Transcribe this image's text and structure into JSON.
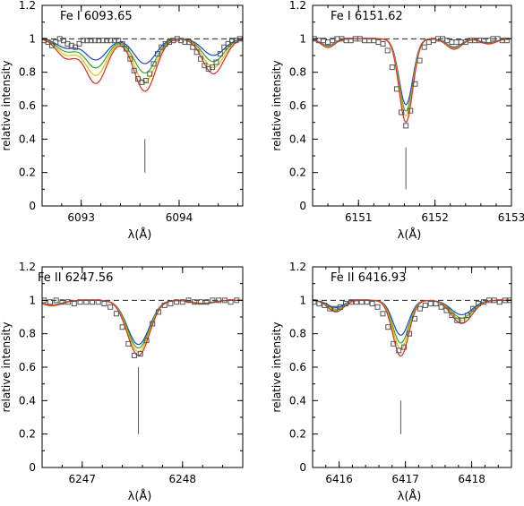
{
  "figure": {
    "colors": {
      "observed": "#555555",
      "model_blue": "#1f3fd8",
      "model_green": "#2fa830",
      "model_yellow": "#d8c800",
      "model_red": "#e8281e",
      "continuum": "#222222",
      "marker": "#555555"
    }
  },
  "chart_data": [
    {
      "type": "line",
      "title": "Fe I 6093.65",
      "xlabel": "λ(Å)",
      "ylabel": "relative intensity",
      "xlim": [
        6092.6,
        6094.65
      ],
      "ylim": [
        0,
        1.2
      ],
      "xticks": [
        6093,
        6094
      ],
      "yticks": [
        0,
        0.2,
        0.4,
        0.6,
        0.8,
        1,
        1.2
      ],
      "continuum": 1.0,
      "line_marker": {
        "x": 6093.65,
        "y": [
          0.2,
          0.4
        ]
      },
      "lines": [
        {
          "center": 6092.85,
          "depth": 0.12,
          "sigma": 0.1
        },
        {
          "center": 6093.15,
          "depth": 0.28,
          "sigma": 0.11
        },
        {
          "center": 6093.65,
          "depth": 0.33,
          "sigma": 0.11
        },
        {
          "center": 6094.35,
          "depth": 0.22,
          "sigma": 0.11
        }
      ],
      "observed": {
        "x": [
          6092.62,
          6092.66,
          6092.7,
          6092.74,
          6092.78,
          6092.82,
          6092.86,
          6092.9,
          6092.94,
          6092.98,
          6093.02,
          6093.06,
          6093.1,
          6093.14,
          6093.18,
          6093.22,
          6093.26,
          6093.3,
          6093.34,
          6093.38,
          6093.42,
          6093.46,
          6093.5,
          6093.54,
          6093.58,
          6093.62,
          6093.66,
          6093.7,
          6093.74,
          6093.78,
          6093.82,
          6093.86,
          6093.9,
          6093.94,
          6093.98,
          6094.02,
          6094.06,
          6094.1,
          6094.14,
          6094.18,
          6094.22,
          6094.26,
          6094.3,
          6094.34,
          6094.38,
          6094.42,
          6094.46,
          6094.5,
          6094.54,
          6094.58,
          6094.62
        ],
        "y": [
          0.99,
          0.98,
          0.96,
          0.98,
          1.0,
          0.99,
          0.97,
          0.96,
          0.95,
          0.97,
          0.99,
          0.99,
          0.99,
          0.99,
          0.99,
          0.99,
          0.99,
          0.99,
          0.99,
          0.99,
          0.97,
          0.94,
          0.88,
          0.81,
          0.76,
          0.74,
          0.75,
          0.79,
          0.85,
          0.91,
          0.95,
          0.97,
          0.98,
          0.99,
          1.0,
          0.99,
          0.98,
          0.98,
          0.95,
          0.92,
          0.88,
          0.84,
          0.82,
          0.83,
          0.86,
          0.91,
          0.95,
          0.97,
          0.99,
          0.99,
          1.0
        ]
      },
      "series": [
        {
          "color_key": "model_blue",
          "scale": 0.45
        },
        {
          "color_key": "model_green",
          "scale": 0.62
        },
        {
          "color_key": "model_yellow",
          "scale": 0.78
        },
        {
          "color_key": "model_red",
          "scale": 0.95
        }
      ]
    },
    {
      "type": "line",
      "title": "Fe I 6151.62",
      "xlabel": "λ(Å)",
      "ylabel": "relative intensity",
      "xlim": [
        6150.4,
        6153.0
      ],
      "ylim": [
        0,
        1.2
      ],
      "xticks": [
        6151,
        6152,
        6153
      ],
      "yticks": [
        0,
        0.2,
        0.4,
        0.6,
        0.8,
        1,
        1.2
      ],
      "continuum": 1.0,
      "line_marker": {
        "x": 6151.62,
        "y": [
          0.1,
          0.35
        ]
      },
      "lines": [
        {
          "center": 6150.6,
          "depth": 0.05,
          "sigma": 0.09
        },
        {
          "center": 6151.62,
          "depth": 0.48,
          "sigma": 0.09
        },
        {
          "center": 6152.25,
          "depth": 0.06,
          "sigma": 0.1
        },
        {
          "center": 6152.7,
          "depth": 0.03,
          "sigma": 0.1
        }
      ],
      "observed": {
        "x": [
          6150.42,
          6150.48,
          6150.54,
          6150.6,
          6150.66,
          6150.72,
          6150.78,
          6150.84,
          6150.9,
          6150.96,
          6151.02,
          6151.08,
          6151.14,
          6151.2,
          6151.26,
          6151.32,
          6151.38,
          6151.44,
          6151.5,
          6151.56,
          6151.62,
          6151.68,
          6151.74,
          6151.8,
          6151.86,
          6151.92,
          6151.98,
          6152.04,
          6152.1,
          6152.16,
          6152.22,
          6152.28,
          6152.34,
          6152.4,
          6152.46,
          6152.52,
          6152.58,
          6152.64,
          6152.7,
          6152.76,
          6152.82,
          6152.88,
          6152.94
        ],
        "y": [
          1.0,
          0.99,
          0.99,
          0.98,
          0.99,
          1.0,
          1.0,
          0.99,
          0.99,
          1.0,
          1.0,
          0.99,
          0.99,
          0.99,
          0.98,
          0.97,
          0.93,
          0.83,
          0.7,
          0.56,
          0.48,
          0.57,
          0.73,
          0.87,
          0.95,
          0.98,
          0.99,
          1.0,
          1.0,
          0.99,
          0.98,
          0.98,
          0.98,
          0.98,
          0.99,
          0.99,
          0.99,
          0.99,
          0.99,
          1.0,
          1.0,
          0.99,
          0.99
        ]
      },
      "series": [
        {
          "color_key": "model_blue",
          "scale": 0.82
        },
        {
          "color_key": "model_green",
          "scale": 0.9
        },
        {
          "color_key": "model_yellow",
          "scale": 0.96
        },
        {
          "color_key": "model_red",
          "scale": 1.04
        }
      ]
    },
    {
      "type": "line",
      "title": "Fe II 6247.56",
      "xlabel": "λ(Å)",
      "ylabel": "relative intensity",
      "xlim": [
        6246.6,
        6248.6
      ],
      "ylim": [
        0,
        1.2
      ],
      "xticks": [
        6247,
        6248
      ],
      "yticks": [
        0,
        0.2,
        0.4,
        0.6,
        0.8,
        1,
        1.2
      ],
      "continuum": 1.0,
      "line_marker": {
        "x": 6247.56,
        "y": [
          0.2,
          0.6
        ]
      },
      "lines": [
        {
          "center": 6246.7,
          "depth": 0.03,
          "sigma": 0.1
        },
        {
          "center": 6247.56,
          "depth": 0.3,
          "sigma": 0.11
        },
        {
          "center": 6248.2,
          "depth": 0.02,
          "sigma": 0.1
        }
      ],
      "observed": {
        "x": [
          6246.62,
          6246.68,
          6246.74,
          6246.8,
          6246.86,
          6246.92,
          6246.98,
          6247.04,
          6247.1,
          6247.16,
          6247.22,
          6247.28,
          6247.34,
          6247.4,
          6247.46,
          6247.52,
          6247.58,
          6247.64,
          6247.7,
          6247.76,
          6247.82,
          6247.88,
          6247.94,
          6248.0,
          6248.06,
          6248.12,
          6248.18,
          6248.24,
          6248.3,
          6248.36,
          6248.42,
          6248.48,
          6248.54
        ],
        "y": [
          1.0,
          0.99,
          1.0,
          0.99,
          0.99,
          0.98,
          0.99,
          0.99,
          0.99,
          0.99,
          0.98,
          0.96,
          0.92,
          0.84,
          0.74,
          0.67,
          0.68,
          0.76,
          0.86,
          0.93,
          0.97,
          0.98,
          0.99,
          0.99,
          1.0,
          0.99,
          0.99,
          0.99,
          1.0,
          1.0,
          1.0,
          0.99,
          1.0
        ]
      },
      "series": [
        {
          "color_key": "model_blue",
          "scale": 0.88
        },
        {
          "color_key": "model_green",
          "scale": 0.95
        },
        {
          "color_key": "model_yellow",
          "scale": 1.02
        },
        {
          "color_key": "model_red",
          "scale": 1.1
        }
      ]
    },
    {
      "type": "line",
      "title": "Fe II 6416.93",
      "xlabel": "λ(Å)",
      "ylabel": "relative intensity",
      "xlim": [
        6415.6,
        6418.6
      ],
      "ylim": [
        0,
        1.2
      ],
      "xticks": [
        6416,
        6417,
        6418
      ],
      "yticks": [
        0,
        0.2,
        0.4,
        0.6,
        0.8,
        1,
        1.2
      ],
      "continuum": 1.0,
      "line_marker": {
        "x": 6416.93,
        "y": [
          0.2,
          0.4
        ]
      },
      "lines": [
        {
          "center": 6415.95,
          "depth": 0.06,
          "sigma": 0.12
        },
        {
          "center": 6416.93,
          "depth": 0.29,
          "sigma": 0.12
        },
        {
          "center": 6417.85,
          "depth": 0.12,
          "sigma": 0.16
        }
      ],
      "observed": {
        "x": [
          6415.62,
          6415.7,
          6415.78,
          6415.86,
          6415.94,
          6416.02,
          6416.1,
          6416.18,
          6416.26,
          6416.34,
          6416.42,
          6416.5,
          6416.58,
          6416.66,
          6416.74,
          6416.82,
          6416.9,
          6416.98,
          6417.06,
          6417.14,
          6417.22,
          6417.3,
          6417.38,
          6417.46,
          6417.54,
          6417.62,
          6417.7,
          6417.78,
          6417.86,
          6417.94,
          6418.02,
          6418.1,
          6418.18,
          6418.26,
          6418.34,
          6418.42,
          6418.5,
          6418.58
        ],
        "y": [
          0.99,
          0.98,
          0.97,
          0.95,
          0.95,
          0.96,
          0.98,
          0.99,
          0.99,
          0.99,
          0.99,
          0.98,
          0.96,
          0.92,
          0.84,
          0.74,
          0.7,
          0.72,
          0.8,
          0.89,
          0.95,
          0.97,
          0.98,
          0.98,
          0.96,
          0.94,
          0.91,
          0.88,
          0.88,
          0.91,
          0.95,
          0.98,
          0.99,
          1.0,
          1.0,
          0.99,
          1.0,
          1.0
        ]
      },
      "series": [
        {
          "color_key": "model_blue",
          "scale": 0.72
        },
        {
          "color_key": "model_green",
          "scale": 0.88
        },
        {
          "color_key": "model_yellow",
          "scale": 1.0
        },
        {
          "color_key": "model_red",
          "scale": 1.15
        }
      ]
    }
  ]
}
